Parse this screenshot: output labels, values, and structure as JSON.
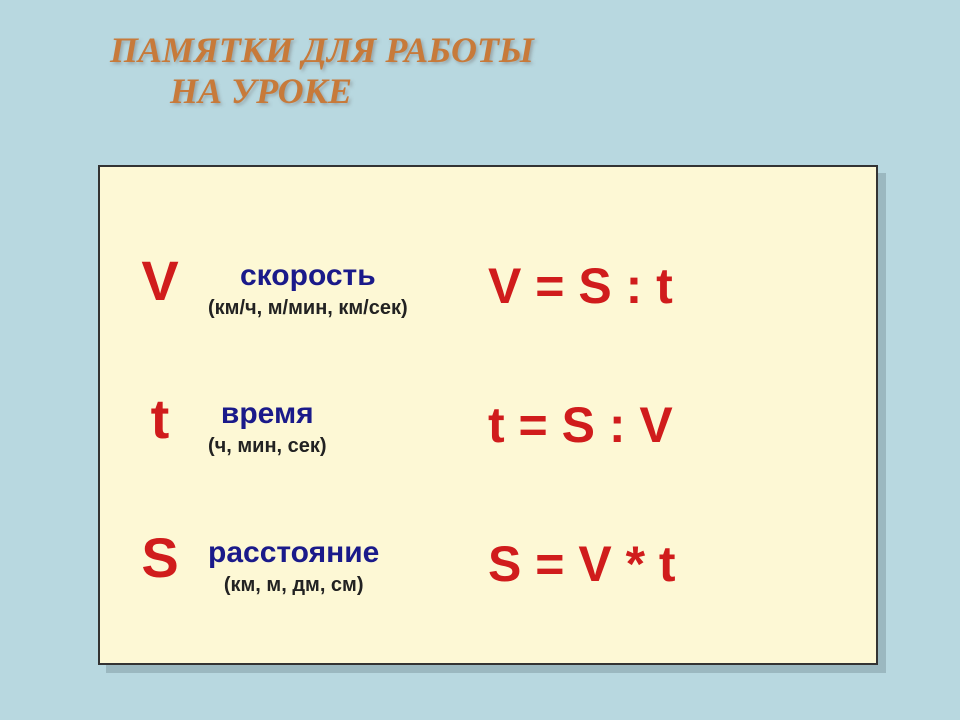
{
  "title": {
    "line1": "ПАМЯТКИ ДЛЯ РАБОТЫ",
    "line2": "НА УРОКЕ"
  },
  "colors": {
    "page_bg": "#b8d8e0",
    "card_bg": "#fdf8d5",
    "card_border": "#333333",
    "shadow": "#9bb8c0",
    "title_color": "#c77a3a",
    "symbol_color": "#d01c1c",
    "label_color": "#1a1a8a",
    "units_color": "#222222"
  },
  "typography": {
    "title_fontsize": 36,
    "symbol_fontsize": 56,
    "label_fontsize": 30,
    "units_fontsize": 20,
    "formula_fontsize": 50
  },
  "rows": [
    {
      "symbol": "V",
      "label": "скорость",
      "units": "(км/ч, м/мин, км/сек)",
      "formula": "V = S : t"
    },
    {
      "symbol": "t",
      "label": "время",
      "units": "(ч, мин, сек)",
      "formula": "t = S : V"
    },
    {
      "symbol": "S",
      "label": "расстояние",
      "units": "(км, м, дм, см)",
      "formula": "S = V * t"
    }
  ]
}
